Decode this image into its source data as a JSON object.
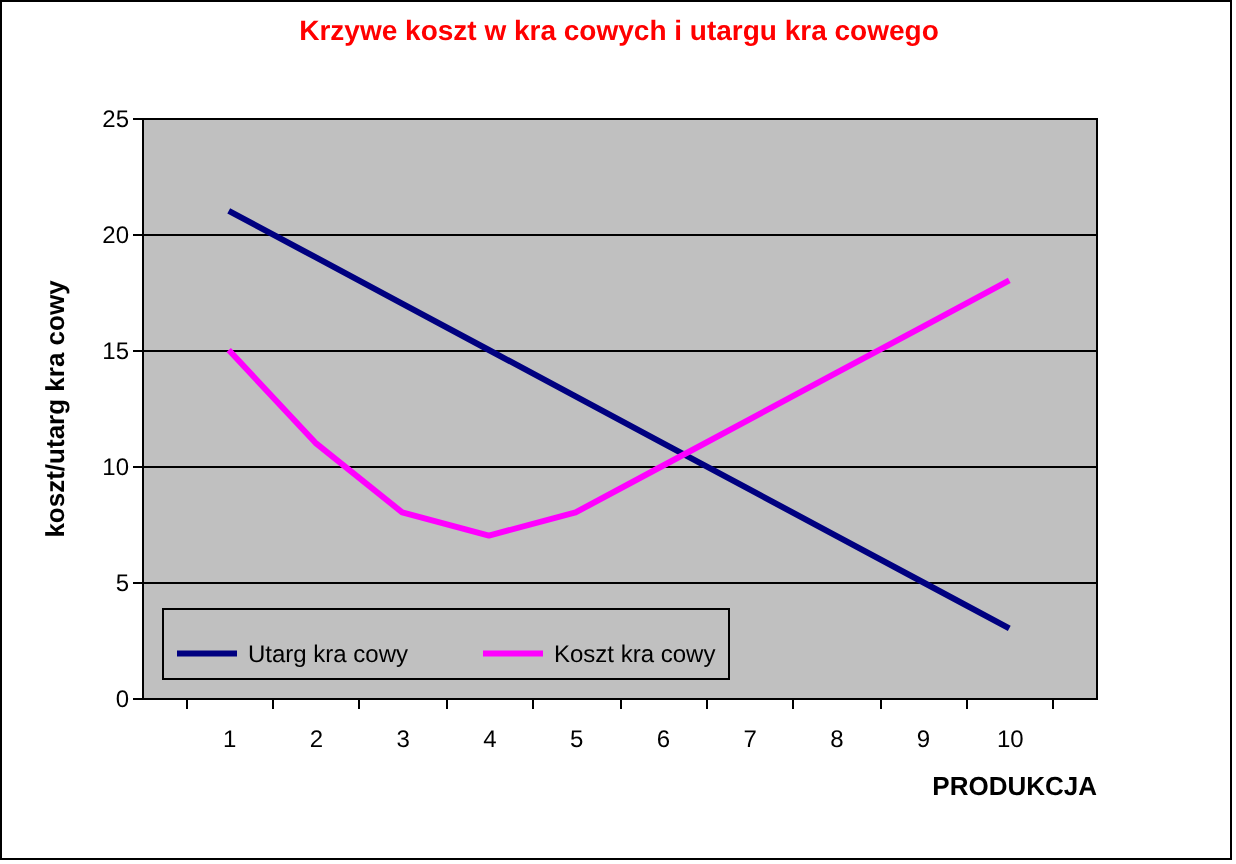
{
  "chart_data": {
    "type": "line",
    "title": "Krzywe koszt  w kra  cowych i utargu kra  cowego",
    "xlabel": "PRODUKCJA",
    "ylabel": "koszt/utarg kra cowy",
    "categories": [
      "1",
      "2",
      "3",
      "4",
      "5",
      "6",
      "7",
      "8",
      "9",
      "10"
    ],
    "series": [
      {
        "name": "Utarg kra cowy",
        "color": "#000080",
        "values": [
          21,
          19,
          17,
          15,
          13,
          11,
          9,
          7,
          5,
          3
        ]
      },
      {
        "name": "Koszt kra cowy",
        "color": "#ff00ff",
        "values": [
          15,
          11,
          8,
          7,
          8,
          10,
          12,
          14,
          16,
          18
        ]
      }
    ],
    "ylim": [
      0,
      25
    ],
    "yticks": [
      0,
      5,
      10,
      15,
      20,
      25
    ],
    "grid": "y",
    "legend": "bottom left",
    "marker": "none",
    "line_style": "solid"
  }
}
